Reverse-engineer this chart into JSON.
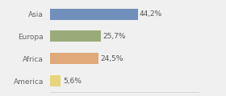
{
  "categories": [
    "Asia",
    "Europa",
    "Africa",
    "America"
  ],
  "values": [
    44.2,
    25.7,
    24.5,
    5.6
  ],
  "labels": [
    "44,2%",
    "25,7%",
    "24,5%",
    "5,6%"
  ],
  "bar_colors": [
    "#7090bb",
    "#9aab7a",
    "#e0a97a",
    "#e8d47a"
  ],
  "background_color": "#f0f0f0",
  "xlim": [
    0,
    75
  ],
  "bar_height": 0.5,
  "label_fontsize": 6.5,
  "tick_fontsize": 6.5,
  "label_color": "#555555",
  "tick_color": "#666666"
}
